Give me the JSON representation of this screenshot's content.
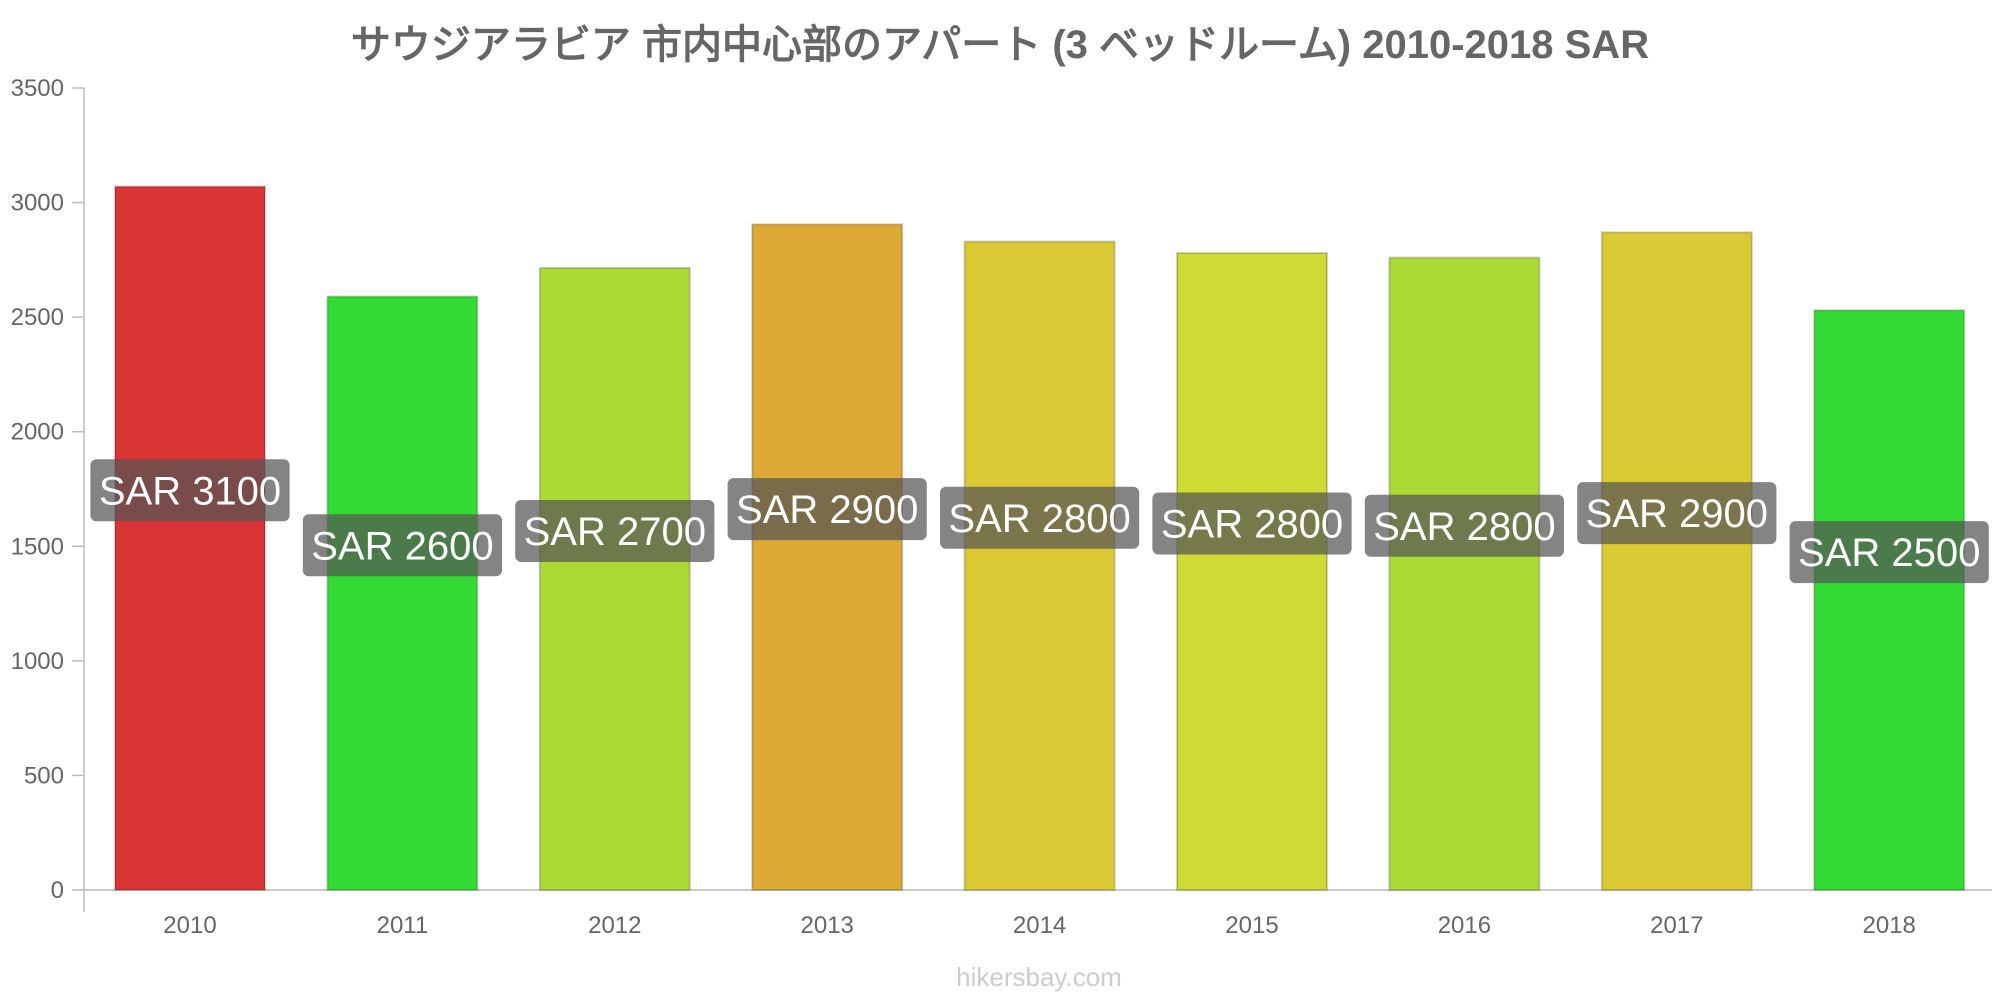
{
  "chart_data": {
    "type": "bar",
    "title": "サウジアラビア 市内中心部のアパート (3 ベッドルーム) 2010-2018 SAR",
    "categories": [
      "2010",
      "2011",
      "2012",
      "2013",
      "2014",
      "2015",
      "2016",
      "2017",
      "2018"
    ],
    "values": [
      3070,
      2590,
      2715,
      2905,
      2830,
      2780,
      2760,
      2870,
      2530
    ],
    "data_labels": [
      "SAR 3100",
      "SAR 2600",
      "SAR 2700",
      "SAR 2900",
      "SAR 2800",
      "SAR 2800",
      "SAR 2800",
      "SAR 2900",
      "SAR 2500"
    ],
    "bar_colors": [
      "#db3434",
      "#34db34",
      "#abdb34",
      "#dba934",
      "#dbca34",
      "#cedb34",
      "#abdb34",
      "#dbca34",
      "#34db34"
    ],
    "label_box_color": "#555555",
    "ylim": [
      0,
      3500
    ],
    "yticks": [
      0,
      500,
      1000,
      1500,
      2000,
      2500,
      3000,
      3500
    ],
    "xlabel": "",
    "ylabel": "",
    "grid": false,
    "legend": "none"
  },
  "credit": "hikersbay.com"
}
